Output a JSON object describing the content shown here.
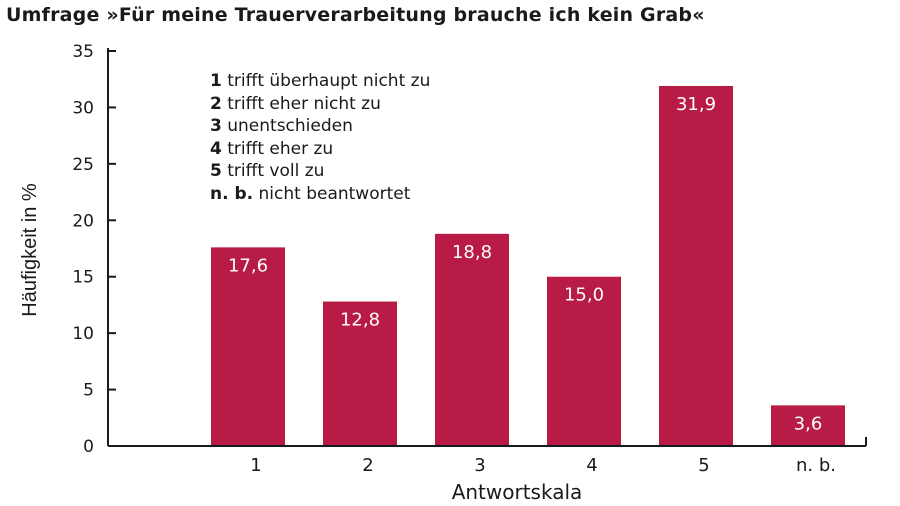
{
  "title": "Umfrage »Für meine Trauerverarbeitung brauche ich kein Grab«",
  "legend": [
    {
      "key": "1",
      "text": "trifft überhaupt nicht zu"
    },
    {
      "key": "2",
      "text": "trifft eher nicht zu"
    },
    {
      "key": "3",
      "text": "unentschieden"
    },
    {
      "key": "4",
      "text": "trifft eher zu"
    },
    {
      "key": "5",
      "text": "trifft voll zu"
    },
    {
      "key": "n. b.",
      "text": "nicht beantwortet"
    }
  ],
  "chart_data": {
    "type": "bar",
    "title": "Umfrage »Für meine Trauerverarbeitung brauche ich kein Grab«",
    "xlabel": "Antwortskala",
    "ylabel": "Häufigkeit in %",
    "categories": [
      "1",
      "2",
      "3",
      "4",
      "5",
      "n. b."
    ],
    "values": [
      17.6,
      12.8,
      18.8,
      15.0,
      31.9,
      3.6
    ],
    "value_labels": [
      "17,6",
      "12,8",
      "18,8",
      "15,0",
      "31,9",
      "3,6"
    ],
    "ylim": [
      0,
      35
    ],
    "yticks": [
      0,
      5,
      10,
      15,
      20,
      25,
      30,
      35
    ],
    "bar_color": "#b81b45",
    "grid": false,
    "legend_position": "top-left"
  }
}
